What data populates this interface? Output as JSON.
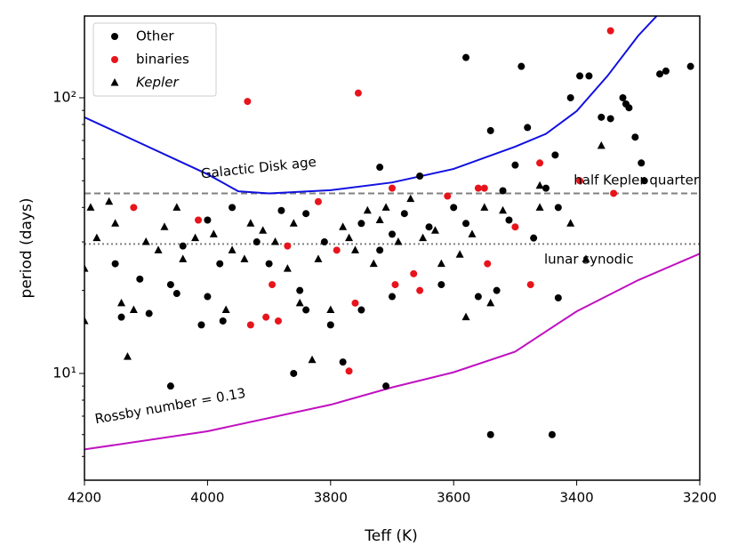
{
  "chart_data": {
    "type": "scatter",
    "x_label": "Teff (K)",
    "y_label": "period (days)",
    "xlim": [
      4200,
      3200
    ],
    "ylim": [
      4.1,
      198
    ],
    "xticks": [
      4200,
      4000,
      3800,
      3600,
      3400,
      3200
    ],
    "yticks": [
      {
        "value": 10,
        "label": "10¹"
      },
      {
        "value": 100,
        "label": "10²"
      }
    ],
    "log_y": true,
    "legend": "upper left",
    "series": [
      {
        "name": "Other",
        "color": "#000000",
        "marker": "circle",
        "x": [
          4060,
          3710,
          3540,
          3440,
          3580,
          3490,
          3395,
          3380,
          3265,
          3255,
          3215,
          3410,
          3325,
          3315,
          3320,
          3360,
          3345,
          3305,
          3295,
          3290,
          3540,
          3480,
          3720,
          3655,
          3500,
          3435,
          3430,
          3780,
          3860,
          4095,
          4110,
          4060,
          3975,
          4010,
          4000,
          4050,
          3980,
          4040,
          4000,
          3960,
          3880,
          3840,
          3810,
          3750,
          3720,
          3700,
          3680,
          3640,
          3600,
          3580,
          3520,
          3510,
          3470,
          3450,
          3430,
          3530,
          3560,
          3620,
          3700,
          3750,
          3800,
          3840,
          3850,
          3900,
          3920,
          4140,
          4150
        ],
        "values": [
          9,
          9,
          6,
          6,
          140,
          130,
          120,
          120,
          122,
          125,
          130,
          100,
          100,
          92,
          95,
          85,
          84,
          72,
          58,
          50,
          76,
          78,
          56,
          52,
          57,
          62,
          18.8,
          11,
          10,
          16.5,
          22,
          21,
          15.5,
          15,
          19,
          19.5,
          25,
          29,
          36,
          40,
          39,
          38,
          30,
          35,
          28,
          32,
          38,
          34,
          40,
          35,
          46,
          36,
          31,
          47,
          40,
          20,
          19,
          21,
          19,
          17,
          15,
          17,
          20,
          25,
          30,
          16,
          25
        ]
      },
      {
        "name": "binaries",
        "color": "#e8141c",
        "marker": "circle",
        "x": [
          3935,
          3755,
          3345,
          4120,
          4015,
          3820,
          3870,
          3790,
          3895,
          3905,
          3930,
          3885,
          3770,
          3760,
          3700,
          3695,
          3665,
          3655,
          3610,
          3560,
          3550,
          3545,
          3500,
          3475,
          3460,
          3395,
          3340
        ],
        "values": [
          97,
          104,
          175,
          40,
          36,
          42,
          29,
          28,
          21,
          16,
          15,
          15.5,
          10.2,
          18,
          47,
          21,
          23,
          20,
          44,
          47,
          47,
          25,
          34,
          21,
          58,
          50,
          45
        ]
      },
      {
        "name": "Kepler",
        "color": "#000000",
        "marker": "triangle",
        "x": [
          4200,
          4200,
          4190,
          4180,
          4160,
          4150,
          4140,
          4130,
          4120,
          4100,
          4080,
          4070,
          4050,
          4040,
          4020,
          3990,
          3970,
          3960,
          3940,
          3930,
          3910,
          3890,
          3870,
          3860,
          3850,
          3830,
          3820,
          3800,
          3780,
          3770,
          3760,
          3740,
          3730,
          3720,
          3710,
          3690,
          3670,
          3650,
          3630,
          3590,
          3580,
          3570,
          3550,
          3520,
          3460,
          3460,
          3410,
          3385,
          3360,
          3540,
          3620
        ],
        "values": [
          24,
          15.5,
          40,
          31,
          42,
          35,
          18,
          11.5,
          17,
          30,
          28,
          34,
          40,
          26,
          31,
          32,
          17,
          28,
          26,
          35,
          33,
          30,
          24,
          35,
          18,
          11.2,
          26,
          17,
          34,
          31,
          28,
          39,
          25,
          36,
          40,
          30,
          43,
          31,
          33,
          27,
          16,
          32,
          40,
          39,
          40,
          48,
          35,
          26,
          67,
          18,
          25
        ]
      }
    ],
    "curves": [
      {
        "color": "#1010e0",
        "x": [
          4200,
          4000,
          3950,
          3900,
          3800,
          3700,
          3600,
          3500,
          3450,
          3400,
          3350,
          3300,
          3270
        ],
        "values": [
          85,
          52.8,
          45.8,
          45,
          46.2,
          49.3,
          55.2,
          66.5,
          74,
          89.5,
          120,
          168,
          198
        ]
      },
      {
        "color": "#c010c0",
        "x": [
          4200,
          4000,
          3800,
          3700,
          3600,
          3500,
          3400,
          3300,
          3200
        ],
        "values": [
          5.3,
          6.17,
          7.7,
          8.9,
          10.1,
          12.0,
          16.8,
          21.8,
          27.2
        ]
      }
    ],
    "hlines": [
      {
        "value": 45,
        "color": "#808080",
        "style": "dashed"
      },
      {
        "value": 29.5,
        "color": "#808080",
        "style": "dotted"
      }
    ],
    "annotations": [
      "Galactic Disk age",
      "half Kepler quarter",
      "lunar synodic",
      "Rossby number = 0.13"
    ]
  }
}
